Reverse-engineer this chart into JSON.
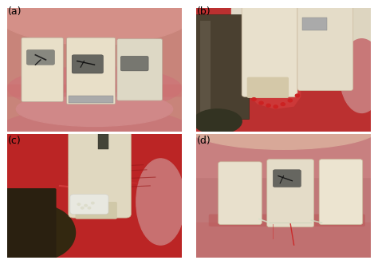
{
  "figure_width": 4.74,
  "figure_height": 3.36,
  "dpi": 100,
  "background_color": "#ffffff",
  "labels": [
    "(a)",
    "(b)",
    "(c)",
    "(d)"
  ],
  "label_fontsize": 9,
  "label_color": "#000000",
  "panels": [
    {
      "name": "a",
      "bg": "#c97a7a",
      "upper_tissue": "#d4908a",
      "lower_tissue": "#c87878",
      "tooth_color": "#e8dfc8",
      "tooth2_color": "#ddd5bc",
      "amalgam": "#555555",
      "gum_line": "#c06060"
    },
    {
      "name": "b",
      "bg": "#aa3030",
      "tooth_color": "#e8e0cc",
      "instrument": "#5a5040",
      "pink_right": "#c87878",
      "upper_bg": "#d8c8b0"
    },
    {
      "name": "c",
      "bg": "#aa2828",
      "tooth_color": "#e0d8c0",
      "instrument_dark": "#3a3020",
      "graft_white": "#e8e8e0",
      "tissue_pink": "#c86868"
    },
    {
      "name": "d",
      "bg": "#c07878",
      "upper_tissue": "#d0a090",
      "tooth_color": "#ece4d0",
      "amalgam": "#555555",
      "suture": "#d0d8c0",
      "blood": "#cc3333"
    }
  ]
}
